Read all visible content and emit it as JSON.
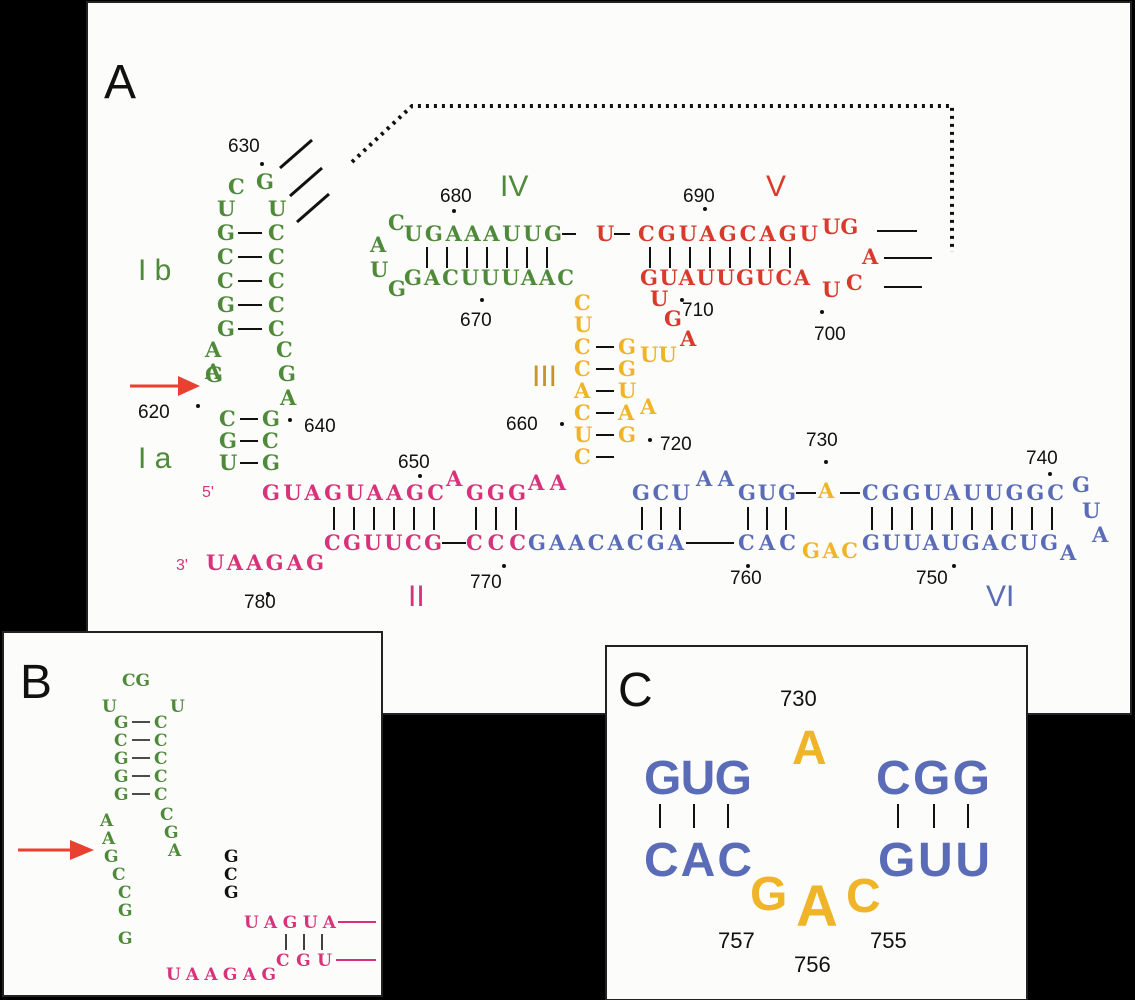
{
  "colors": {
    "green": "#4e8a3a",
    "red": "#d93a2c",
    "yellow": "#f0b428",
    "magenta": "#d8337a",
    "blue": "#5a6cb8",
    "black": "#111111",
    "arrow": "#e8412f",
    "roman_iii": "#c8942a"
  },
  "panels": {
    "a": {
      "letter": "A"
    },
    "b": {
      "letter": "B"
    },
    "c": {
      "letter": "C"
    }
  },
  "labels": {
    "ib": "I b",
    "ia": "I a",
    "ii": "II",
    "iii": "III",
    "iv": "IV",
    "v": "V",
    "vi": "VI",
    "five_prime": "5'",
    "three_prime": "3'"
  },
  "numbers": {
    "n620": "620",
    "n630": "630",
    "n640": "640",
    "n650": "650",
    "n660": "660",
    "n670": "670",
    "n680": "680",
    "n690": "690",
    "n700": "700",
    "n710": "710",
    "n720": "720",
    "n730": "730",
    "n740": "740",
    "n750": "750",
    "n760": "760",
    "n770": "770",
    "n780": "780"
  },
  "panel_c": {
    "n730": "730",
    "n757": "757",
    "n756": "756",
    "n755": "755",
    "top_left": "GUG",
    "top_right": "CGG",
    "bottom_left": "CAC",
    "bottom_right": "GUU",
    "bulge_a": "A",
    "loop_g": "G",
    "loop_a": "A",
    "loop_c": "C"
  },
  "strands": {
    "ib_left": "UGCCGG",
    "ib_right": "UCCCCC",
    "loop_c": "C",
    "loop_g": "G",
    "a_bulge": "AAG",
    "right_bulge": "CGA",
    "ia_left": "CGU",
    "ia_right": "GCG",
    "iv_top": "UGAAAUUG",
    "iv_bot": "GACUUUAAC",
    "iv_c": "C",
    "iv_a": "A",
    "iv_u": "U",
    "iv_g": "G",
    "v_u": "U",
    "v_top": "CGUAGCAGU",
    "v_ug": "UG",
    "v_a": "A",
    "v_bot": "GUAUUGUCA",
    "v_u2": "U",
    "v_c": "C",
    "v_u3": "U",
    "v_g": "G",
    "v_a2": "A",
    "iii_left": "CUCCACUC",
    "iii_right": "GGUAG",
    "iii_uu": "UU",
    "iii_a": "A",
    "ii_top1": "GUAGUAAGC",
    "ii_a": "A",
    "ii_ggg": "GGG",
    "ii_aa": "AA",
    "ii_bot": "UAAGAG",
    "ii_bot2": "CGUUCG",
    "ii_bot3": "CCC",
    "vi_gcu": "GCU",
    "vi_aa": "AA",
    "vi_gug": "GUG",
    "vi_a": "A",
    "vi_top": "CGGUAUUGGC",
    "vi_g": "G",
    "vi_u": "U",
    "vi_a2": "A",
    "vi_bot1": "GAACACGA",
    "vi_cac": "CAC",
    "vi_gac": "GAC",
    "vi_bot2": "GUUAUGACUG",
    "vi_a3": "A"
  },
  "panel_b": {
    "cg": "CG",
    "u_left": "U",
    "u_right": "U",
    "left_stem": "GCCGG",
    "right_stem": "CCCCC",
    "left_lower": "AAGCCG",
    "right_lower": "CGA",
    "black_ggg": "GCG",
    "uagua": "UAGUA",
    "uaagag": "UAAGAG",
    "cgu": "CGU"
  }
}
